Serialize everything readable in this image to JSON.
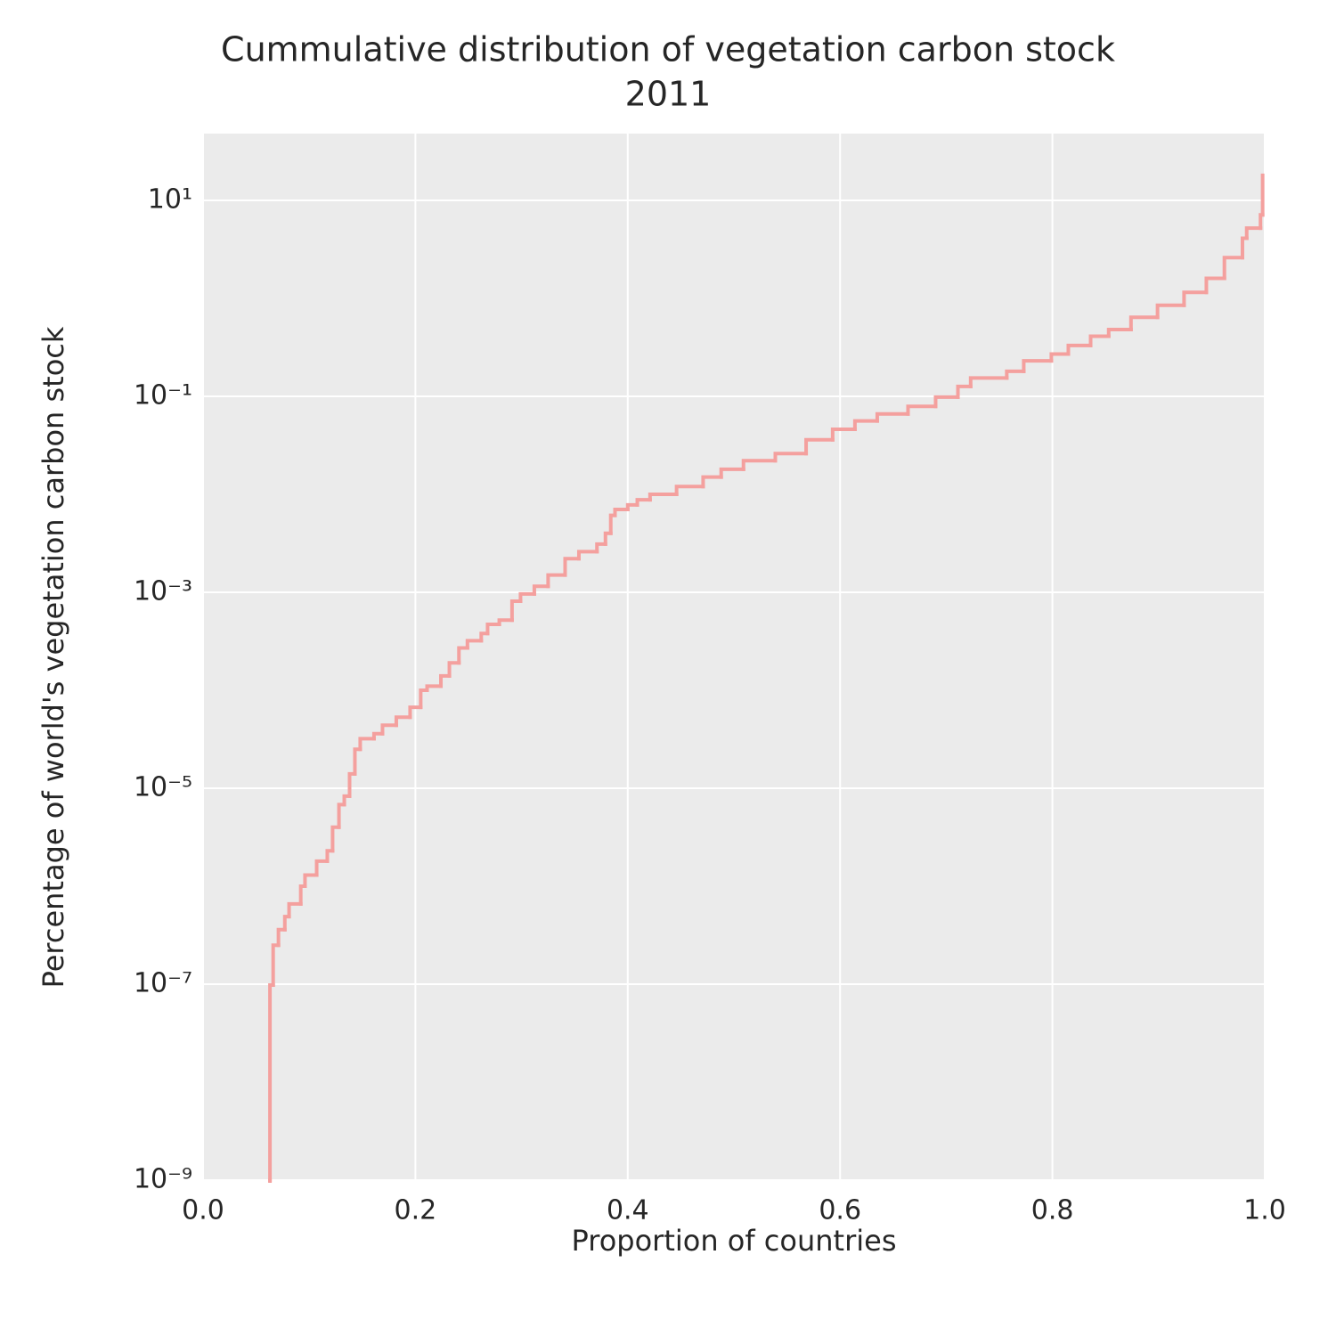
{
  "chart_data": {
    "type": "ecdf",
    "title": "Cummulative distribution of vegetation carbon stock",
    "subtitle": "2011",
    "x_label": "Proportion of countries",
    "y_label": "Percentage of world's vegetation carbon stock",
    "y_scale": "log",
    "grid": true,
    "color": "#f4a09e",
    "background": "#ebebeb",
    "xlim": [
      0,
      1
    ],
    "ylim": [
      1e-09,
      48
    ],
    "xticks": [
      {
        "value": 0,
        "label": "0.0"
      },
      0.2,
      0.4,
      0.6,
      0.8,
      {
        "value": 1,
        "label": "1.0"
      }
    ],
    "yticks": [
      {
        "value": 1e-09,
        "label": "10⁻⁹"
      },
      {
        "value": 1e-07,
        "label": "10⁻⁷"
      },
      {
        "value": 1e-05,
        "label": "10⁻⁵"
      },
      {
        "value": 0.001,
        "label": "10⁻³"
      },
      {
        "value": 0.1,
        "label": "10⁻¹"
      },
      {
        "value": 10,
        "label": "10¹"
      }
    ],
    "x": [
      0.063,
      0.063,
      0.066,
      0.071,
      0.077,
      0.081,
      0.092,
      0.096,
      0.107,
      0.117,
      0.122,
      0.128,
      0.133,
      0.138,
      0.143,
      0.148,
      0.161,
      0.169,
      0.182,
      0.195,
      0.205,
      0.211,
      0.224,
      0.232,
      0.241,
      0.249,
      0.262,
      0.268,
      0.279,
      0.291,
      0.299,
      0.312,
      0.325,
      0.341,
      0.354,
      0.371,
      0.379,
      0.384,
      0.388,
      0.4,
      0.409,
      0.421,
      0.446,
      0.471,
      0.488,
      0.509,
      0.539,
      0.568,
      0.593,
      0.614,
      0.635,
      0.664,
      0.69,
      0.711,
      0.723,
      0.757,
      0.773,
      0.799,
      0.815,
      0.836,
      0.853,
      0.874,
      0.899,
      0.924,
      0.945,
      0.962,
      0.979,
      0.983,
      0.996,
      0.998
    ],
    "values": [
      1e-09,
      9.8e-08,
      2.5e-07,
      3.6e-07,
      4.9e-07,
      6.6e-07,
      1e-06,
      1.3e-06,
      1.8e-06,
      2.3e-06,
      4e-06,
      6.8e-06,
      8.3e-06,
      1.4e-05,
      2.5e-05,
      3.2e-05,
      3.6e-05,
      4.4e-05,
      5.3e-05,
      6.7e-05,
      0.0001,
      0.00011,
      0.00014,
      0.00019,
      0.00027,
      0.00032,
      0.00038,
      0.00047,
      0.00052,
      0.00081,
      0.00096,
      0.00115,
      0.0015,
      0.0022,
      0.0026,
      0.0031,
      0.004,
      0.0061,
      0.007,
      0.0078,
      0.0088,
      0.01,
      0.012,
      0.015,
      0.018,
      0.022,
      0.026,
      0.036,
      0.046,
      0.056,
      0.066,
      0.079,
      0.098,
      0.126,
      0.154,
      0.18,
      0.23,
      0.27,
      0.33,
      0.41,
      0.48,
      0.64,
      0.85,
      1.15,
      1.6,
      2.6,
      4.1,
      5.2,
      7.1,
      18
    ]
  }
}
